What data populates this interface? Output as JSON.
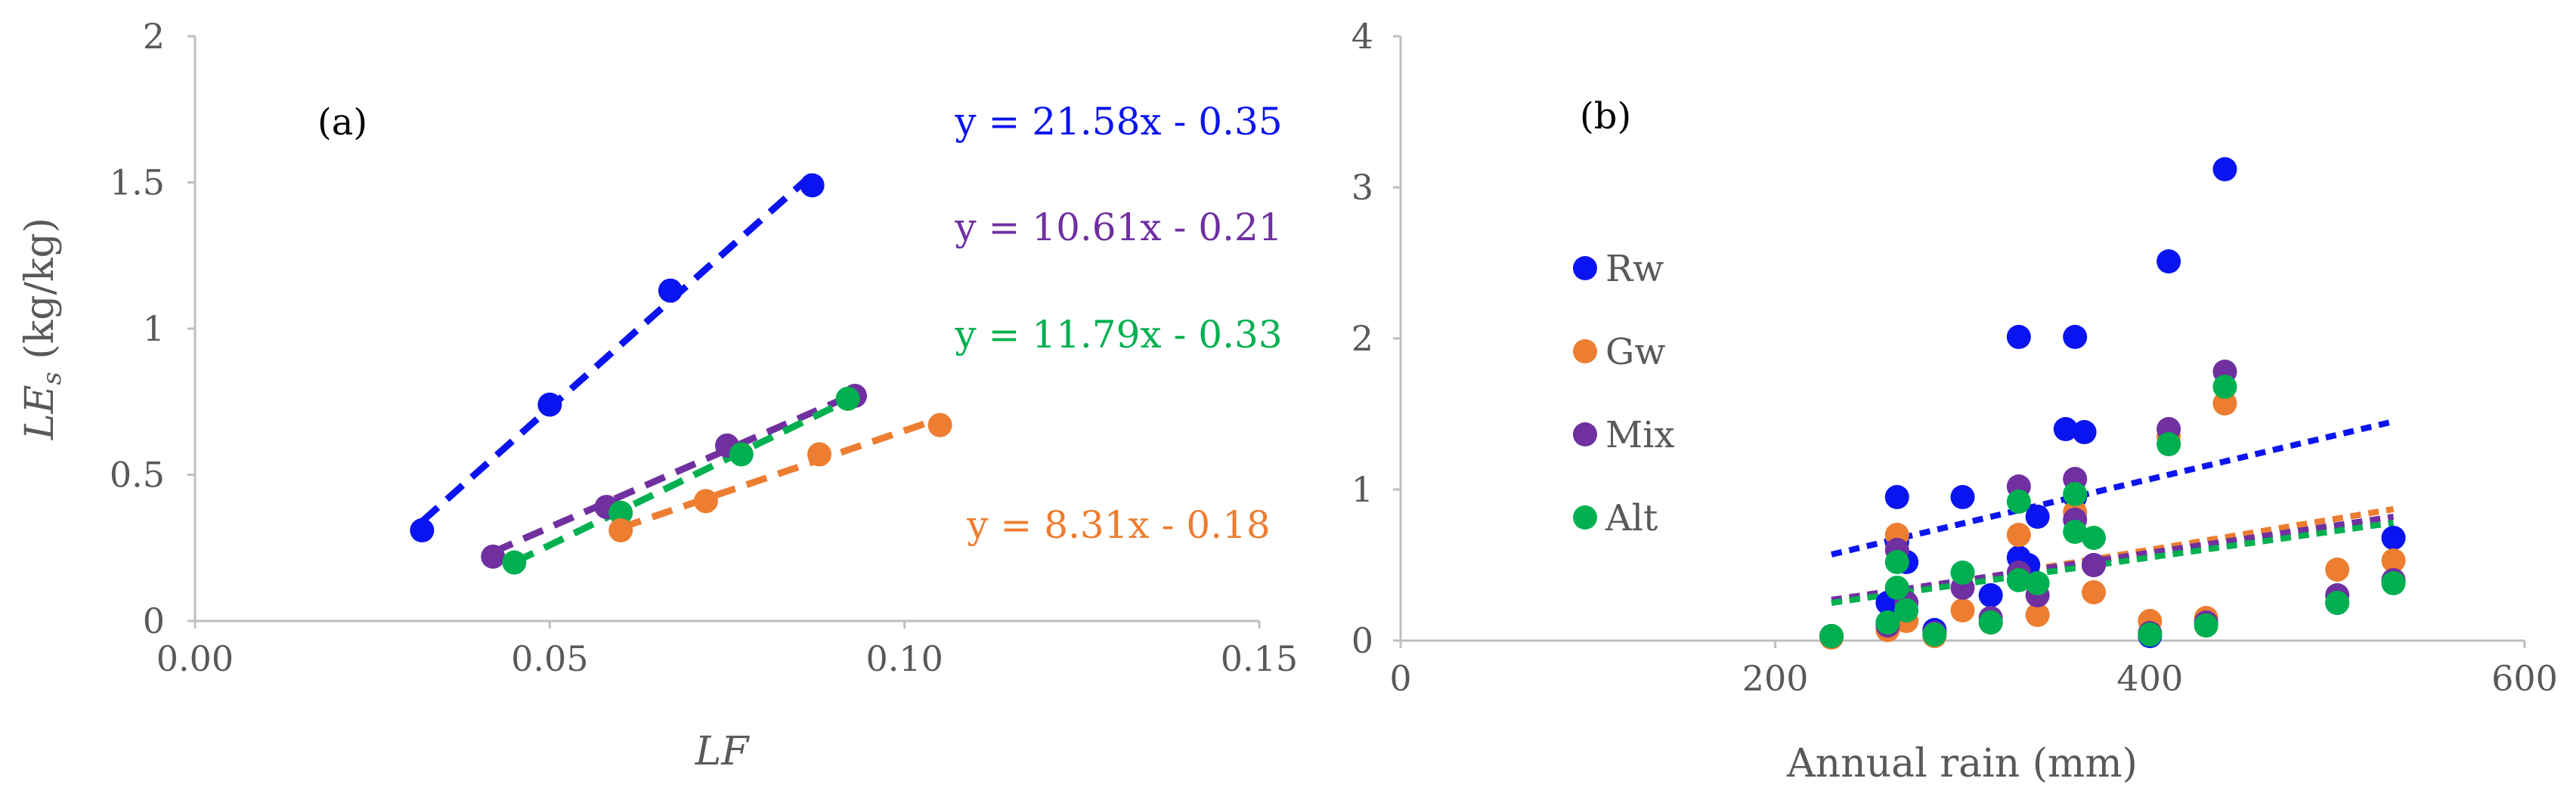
{
  "chart_data": [
    {
      "type": "scatter",
      "panel_label": "(a)",
      "xlabel": "LF",
      "ylabel_main": "LE",
      "ylabel_sub": "s",
      "ylabel_unit": " (kg/kg)",
      "xlim": [
        0,
        0.15
      ],
      "ylim": [
        0,
        2
      ],
      "x_ticks": [
        "0.00",
        "0.05",
        "0.10",
        "0.15"
      ],
      "y_ticks": [
        "0",
        "0.5",
        "1",
        "1.5",
        "2"
      ],
      "grid": false,
      "series": [
        {
          "color": "#0a14f0",
          "points": [
            [
              0.032,
              0.31
            ],
            [
              0.05,
              0.74
            ],
            [
              0.067,
              1.13
            ],
            [
              0.087,
              1.49
            ]
          ],
          "fit": {
            "slope": 21.58,
            "intercept": -0.35,
            "x0": 0.032,
            "x1": 0.087
          },
          "equation": "y = 21.58x - 0.35"
        },
        {
          "color": "#7030a0",
          "points": [
            [
              0.042,
              0.22
            ],
            [
              0.058,
              0.39
            ],
            [
              0.075,
              0.6
            ],
            [
              0.093,
              0.77
            ]
          ],
          "fit": {
            "slope": 10.61,
            "intercept": -0.21,
            "x0": 0.042,
            "x1": 0.094
          },
          "equation": "y = 10.61x - 0.21"
        },
        {
          "color": "#00b050",
          "points": [
            [
              0.045,
              0.2
            ],
            [
              0.06,
              0.37
            ],
            [
              0.077,
              0.57
            ],
            [
              0.092,
              0.76
            ]
          ],
          "fit": {
            "slope": 11.79,
            "intercept": -0.33,
            "x0": 0.045,
            "x1": 0.092
          },
          "equation": "y = 11.79x - 0.33"
        },
        {
          "color": "#ed7d31",
          "points": [
            [
              0.06,
              0.31
            ],
            [
              0.072,
              0.41
            ],
            [
              0.088,
              0.57
            ],
            [
              0.105,
              0.67
            ]
          ],
          "fit": {
            "slope": 8.31,
            "intercept": -0.18,
            "x0": 0.06,
            "x1": 0.105
          },
          "equation": "y = 8.31x - 0.18"
        }
      ]
    },
    {
      "type": "scatter",
      "panel_label": "(b)",
      "xlabel": "Annual rain (mm)",
      "ylabel": "",
      "xlim": [
        0,
        600
      ],
      "ylim": [
        0,
        4
      ],
      "x_ticks": [
        "0",
        "200",
        "400",
        "600"
      ],
      "y_ticks": [
        "0",
        "1",
        "2",
        "3",
        "4"
      ],
      "grid": false,
      "legend_position": "left",
      "series": [
        {
          "name": "Rw",
          "color": "#0a14f0",
          "fit": {
            "x0": 230,
            "y0": 0.57,
            "x1": 530,
            "y1": 1.45
          },
          "points": [
            [
              230,
              0.03
            ],
            [
              260,
              0.25
            ],
            [
              265,
              0.95
            ],
            [
              265,
              0.65
            ],
            [
              270,
              0.52
            ],
            [
              285,
              0.07
            ],
            [
              300,
              0.95
            ],
            [
              315,
              0.3
            ],
            [
              330,
              2.01
            ],
            [
              330,
              0.55
            ],
            [
              335,
              0.5
            ],
            [
              340,
              0.82
            ],
            [
              355,
              1.4
            ],
            [
              360,
              2.01
            ],
            [
              365,
              1.38
            ],
            [
              360,
              0.95
            ],
            [
              370,
              0.5
            ],
            [
              400,
              0.03
            ],
            [
              410,
              2.51
            ],
            [
              440,
              3.12
            ],
            [
              500,
              0.25
            ],
            [
              530,
              0.68
            ]
          ]
        },
        {
          "name": "Gw",
          "color": "#ed7d31",
          "fit": {
            "x0": 230,
            "y0": 0.25,
            "x1": 530,
            "y1": 0.87
          },
          "points": [
            [
              230,
              0.02
            ],
            [
              260,
              0.07
            ],
            [
              265,
              0.7
            ],
            [
              270,
              0.13
            ],
            [
              285,
              0.03
            ],
            [
              300,
              0.2
            ],
            [
              315,
              0.12
            ],
            [
              330,
              0.7
            ],
            [
              340,
              0.17
            ],
            [
              360,
              0.85
            ],
            [
              370,
              0.32
            ],
            [
              400,
              0.13
            ],
            [
              410,
              1.35
            ],
            [
              430,
              0.15
            ],
            [
              440,
              1.57
            ],
            [
              500,
              0.47
            ],
            [
              530,
              0.53
            ]
          ]
        },
        {
          "name": "Mix",
          "color": "#7030a0",
          "fit": {
            "x0": 230,
            "y0": 0.27,
            "x1": 530,
            "y1": 0.82
          },
          "points": [
            [
              230,
              0.03
            ],
            [
              260,
              0.1
            ],
            [
              265,
              0.6
            ],
            [
              270,
              0.25
            ],
            [
              285,
              0.05
            ],
            [
              300,
              0.35
            ],
            [
              315,
              0.15
            ],
            [
              330,
              1.02
            ],
            [
              330,
              0.45
            ],
            [
              340,
              0.3
            ],
            [
              360,
              1.07
            ],
            [
              360,
              0.8
            ],
            [
              370,
              0.5
            ],
            [
              400,
              0.05
            ],
            [
              410,
              1.4
            ],
            [
              430,
              0.12
            ],
            [
              440,
              1.78
            ],
            [
              500,
              0.3
            ],
            [
              530,
              0.4
            ]
          ]
        },
        {
          "name": "Alt",
          "color": "#00b050",
          "fit": {
            "x0": 230,
            "y0": 0.25,
            "x1": 530,
            "y1": 0.78
          },
          "points": [
            [
              230,
              0.03
            ],
            [
              260,
              0.12
            ],
            [
              265,
              0.52
            ],
            [
              265,
              0.35
            ],
            [
              270,
              0.2
            ],
            [
              285,
              0.04
            ],
            [
              300,
              0.45
            ],
            [
              315,
              0.12
            ],
            [
              330,
              0.92
            ],
            [
              330,
              0.4
            ],
            [
              340,
              0.38
            ],
            [
              360,
              0.97
            ],
            [
              360,
              0.72
            ],
            [
              370,
              0.68
            ],
            [
              400,
              0.04
            ],
            [
              410,
              1.3
            ],
            [
              430,
              0.1
            ],
            [
              440,
              1.68
            ],
            [
              500,
              0.25
            ],
            [
              530,
              0.38
            ]
          ]
        }
      ]
    }
  ]
}
